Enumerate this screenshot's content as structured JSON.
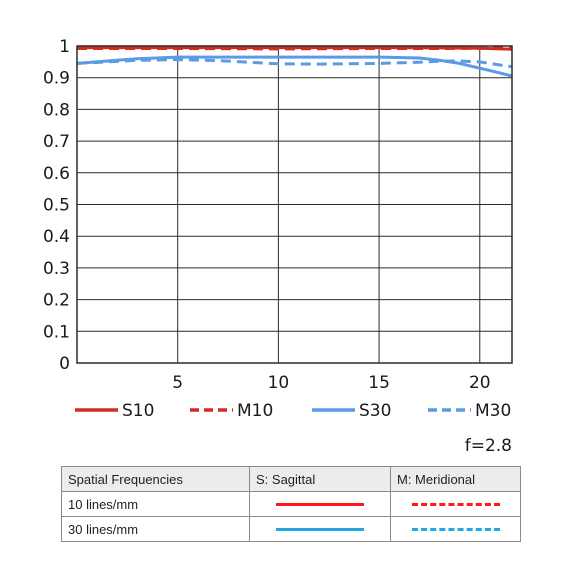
{
  "chart_data": {
    "type": "line",
    "title": "",
    "xlabel": "",
    "ylabel": "",
    "xlim": [
      0,
      21.6
    ],
    "ylim": [
      0,
      1
    ],
    "xticks": [
      5,
      10,
      15,
      20
    ],
    "yticks": [
      "0",
      "0.1",
      "0.2",
      "0.3",
      "0.4",
      "0.5",
      "0.6",
      "0.7",
      "0.8",
      "0.9",
      "1"
    ],
    "grid": true,
    "series": [
      {
        "name": "S10",
        "color": "#d42b1e",
        "style": "solid",
        "x": [
          0,
          5,
          10,
          15,
          18,
          20,
          21.6
        ],
        "y": [
          0.995,
          0.995,
          0.995,
          0.995,
          0.994,
          0.993,
          0.99
        ]
      },
      {
        "name": "M10",
        "color": "#d42b1e",
        "style": "dashed",
        "x": [
          0,
          5,
          10,
          15,
          18,
          20,
          21.6
        ],
        "y": [
          0.992,
          0.992,
          0.991,
          0.992,
          0.992,
          0.993,
          0.995
        ]
      },
      {
        "name": "S30",
        "color": "#5a9ae6",
        "style": "solid",
        "x": [
          0,
          3,
          5,
          8,
          10,
          12,
          15,
          17,
          18,
          19,
          20,
          21,
          21.6
        ],
        "y": [
          0.945,
          0.96,
          0.965,
          0.965,
          0.965,
          0.965,
          0.965,
          0.962,
          0.955,
          0.945,
          0.93,
          0.915,
          0.905
        ]
      },
      {
        "name": "M30",
        "color": "#5a9ae6",
        "style": "dashed",
        "x": [
          0,
          3,
          5,
          7,
          9,
          10,
          12,
          15,
          17,
          18,
          19,
          20,
          21,
          21.6
        ],
        "y": [
          0.945,
          0.955,
          0.957,
          0.954,
          0.947,
          0.944,
          0.943,
          0.945,
          0.949,
          0.952,
          0.953,
          0.95,
          0.94,
          0.935
        ]
      }
    ],
    "aperture_label": "f=2.8"
  },
  "key_table": {
    "headers": [
      "Spatial Frequencies",
      "S: Sagittal",
      "M: Meridional"
    ],
    "rows": [
      {
        "label": "10 lines/mm"
      },
      {
        "label": "30 lines/mm"
      }
    ],
    "colors": {
      "10": "#ff1a1a",
      "30": "#22a6e6"
    }
  }
}
